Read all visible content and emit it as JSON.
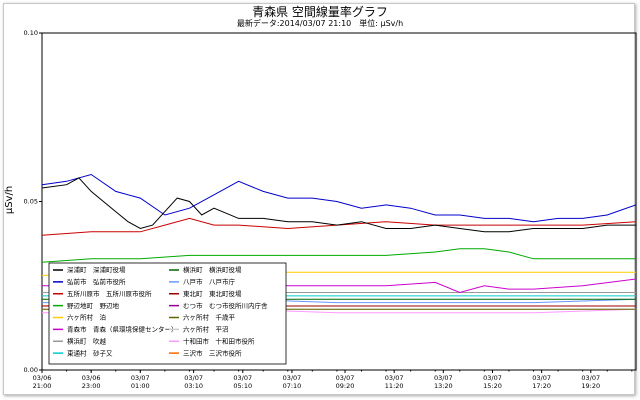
{
  "chart_data": {
    "type": "line",
    "title": "青森県 空間線量率グラフ",
    "subtitle": "最新データ:2014/03/07 21:10　単位: μSv/h",
    "ylabel": "μSv/h",
    "ylim": [
      0,
      0.1
    ],
    "yticks": [
      "0.00",
      "0.05",
      "0.10"
    ],
    "x_tick_labels": [
      [
        "03/06",
        "21:00"
      ],
      [
        "03/06",
        "23:00"
      ],
      [
        "03/07",
        "01:00"
      ],
      [
        "03/07",
        "03:10"
      ],
      [
        "03/07",
        "05:10"
      ],
      [
        "03/07",
        "07:10"
      ],
      [
        "03/07",
        "09:20"
      ],
      [
        "03/07",
        "11:20"
      ],
      [
        "03/07",
        "13:20"
      ],
      [
        "03/07",
        "15:20"
      ],
      [
        "03/07",
        "17:20"
      ],
      [
        "03/07",
        "19:20"
      ]
    ],
    "x_tick_hours": [
      0,
      2,
      4,
      6.17,
      8.17,
      10.17,
      12.33,
      14.33,
      16.33,
      18.33,
      20.33,
      22.33
    ],
    "x_range_hours": [
      0,
      24.17
    ],
    "series": [
      {
        "name": "深浦町　深浦町役場",
        "color": "#000000",
        "x": [
          0,
          1,
          1.5,
          2,
          2.5,
          3,
          3.5,
          4,
          4.5,
          5,
          5.5,
          6,
          6.5,
          7,
          8,
          9,
          10,
          11,
          12,
          13,
          14,
          15,
          16,
          17,
          18,
          19,
          20,
          21,
          22,
          23,
          24.17
        ],
        "y": [
          0.054,
          0.055,
          0.057,
          0.053,
          0.05,
          0.047,
          0.044,
          0.042,
          0.043,
          0.047,
          0.051,
          0.05,
          0.046,
          0.048,
          0.045,
          0.045,
          0.044,
          0.044,
          0.043,
          0.044,
          0.042,
          0.042,
          0.043,
          0.042,
          0.041,
          0.041,
          0.042,
          0.042,
          0.042,
          0.043,
          0.043
        ]
      },
      {
        "name": "弘前市　弘前市役所",
        "color": "#0000cc",
        "x": [
          0,
          1,
          2,
          3,
          4,
          5,
          6,
          7,
          8,
          9,
          10,
          11,
          12,
          13,
          14,
          15,
          16,
          17,
          18,
          19,
          20,
          21,
          22,
          23,
          24.17
        ],
        "y": [
          0.055,
          0.056,
          0.058,
          0.053,
          0.051,
          0.046,
          0.048,
          0.052,
          0.056,
          0.053,
          0.051,
          0.051,
          0.05,
          0.048,
          0.049,
          0.048,
          0.046,
          0.046,
          0.045,
          0.045,
          0.044,
          0.045,
          0.045,
          0.046,
          0.049
        ]
      },
      {
        "name": "五所川原市　五所川原市役所",
        "color": "#cc0000",
        "x": [
          0,
          2,
          4,
          5,
          6,
          7,
          8,
          10,
          12,
          14,
          16,
          18,
          20,
          22,
          24.17
        ],
        "y": [
          0.04,
          0.041,
          0.041,
          0.043,
          0.045,
          0.043,
          0.043,
          0.042,
          0.043,
          0.044,
          0.043,
          0.043,
          0.043,
          0.043,
          0.044
        ]
      },
      {
        "name": "野辺地町　野辺地",
        "color": "#00aa00",
        "x": [
          0,
          2,
          4,
          6,
          8,
          10,
          12,
          14,
          16,
          17,
          18,
          19,
          20,
          22,
          24.17
        ],
        "y": [
          0.032,
          0.033,
          0.033,
          0.034,
          0.034,
          0.034,
          0.034,
          0.034,
          0.035,
          0.036,
          0.036,
          0.035,
          0.033,
          0.033,
          0.033
        ]
      },
      {
        "name": "六ヶ所村　泊",
        "color": "#ffcc00",
        "x": [
          0,
          2,
          4,
          6,
          8,
          10,
          12,
          14,
          16,
          18,
          20,
          22,
          24.17
        ],
        "y": [
          0.028,
          0.029,
          0.029,
          0.03,
          0.029,
          0.029,
          0.029,
          0.029,
          0.029,
          0.029,
          0.029,
          0.029,
          0.029
        ]
      },
      {
        "name": "青森市　青森（県環境保健センター）",
        "color": "#cc00cc",
        "x": [
          0,
          2,
          4,
          6,
          8,
          10,
          12,
          14,
          16,
          17,
          18,
          19,
          20,
          22,
          24.17
        ],
        "y": [
          0.025,
          0.025,
          0.025,
          0.025,
          0.026,
          0.025,
          0.025,
          0.025,
          0.026,
          0.023,
          0.025,
          0.024,
          0.024,
          0.025,
          0.027
        ]
      },
      {
        "name": "横浜町　吹越",
        "color": "#999999",
        "x": [
          0,
          4,
          8,
          12,
          16,
          20,
          24.17
        ],
        "y": [
          0.023,
          0.023,
          0.023,
          0.023,
          0.023,
          0.023,
          0.023
        ]
      },
      {
        "name": "東通村　砂子又",
        "color": "#00cccc",
        "x": [
          0,
          4,
          8,
          12,
          16,
          20,
          24.17
        ],
        "y": [
          0.022,
          0.022,
          0.022,
          0.022,
          0.022,
          0.022,
          0.022
        ]
      },
      {
        "name": "横浜町　横浜町役場",
        "color": "#006600",
        "x": [
          0,
          4,
          8,
          12,
          16,
          20,
          24.17
        ],
        "y": [
          0.021,
          0.021,
          0.021,
          0.021,
          0.021,
          0.021,
          0.021
        ]
      },
      {
        "name": "八戸市　八戸市庁",
        "color": "#6699ff",
        "x": [
          0,
          4,
          8,
          12,
          16,
          20,
          24.17
        ],
        "y": [
          0.02,
          0.02,
          0.021,
          0.02,
          0.02,
          0.02,
          0.021
        ]
      },
      {
        "name": "東北町　東北町役場",
        "color": "#990000",
        "x": [
          0,
          4,
          8,
          12,
          16,
          20,
          24.17
        ],
        "y": [
          0.019,
          0.019,
          0.019,
          0.019,
          0.019,
          0.019,
          0.019
        ]
      },
      {
        "name": "むつ市　むつ市役所川内庁舎",
        "color": "#990099",
        "x": [
          0,
          4,
          8,
          12,
          16,
          20,
          24.17
        ],
        "y": [
          0.019,
          0.019,
          0.019,
          0.019,
          0.019,
          0.019,
          0.019
        ]
      },
      {
        "name": "六ヶ所村　千歳平",
        "color": "#666600",
        "x": [
          0,
          4,
          8,
          12,
          16,
          20,
          24.17
        ],
        "y": [
          0.018,
          0.018,
          0.018,
          0.018,
          0.018,
          0.018,
          0.018
        ]
      },
      {
        "name": "六ヶ所村　平沼",
        "color": "#cccccc",
        "x": [
          0,
          4,
          8,
          12,
          16,
          20,
          24.17
        ],
        "y": [
          0.018,
          0.018,
          0.018,
          0.018,
          0.018,
          0.018,
          0.018
        ]
      },
      {
        "name": "十和田市　十和田市役所",
        "color": "#ff99ff",
        "x": [
          0,
          4,
          8,
          12,
          16,
          20,
          24.17
        ],
        "y": [
          0.017,
          0.017,
          0.018,
          0.017,
          0.017,
          0.017,
          0.018
        ]
      },
      {
        "name": "三沢市　三沢市役所",
        "color": "#ff6600",
        "x": [
          0,
          4,
          8,
          12,
          16,
          20,
          24.17
        ],
        "y": [
          0.019,
          0.02,
          0.019,
          0.019,
          0.019,
          0.019,
          0.019
        ]
      }
    ],
    "legend_position": "bottom-left",
    "legend_columns": 2,
    "grid": false
  }
}
